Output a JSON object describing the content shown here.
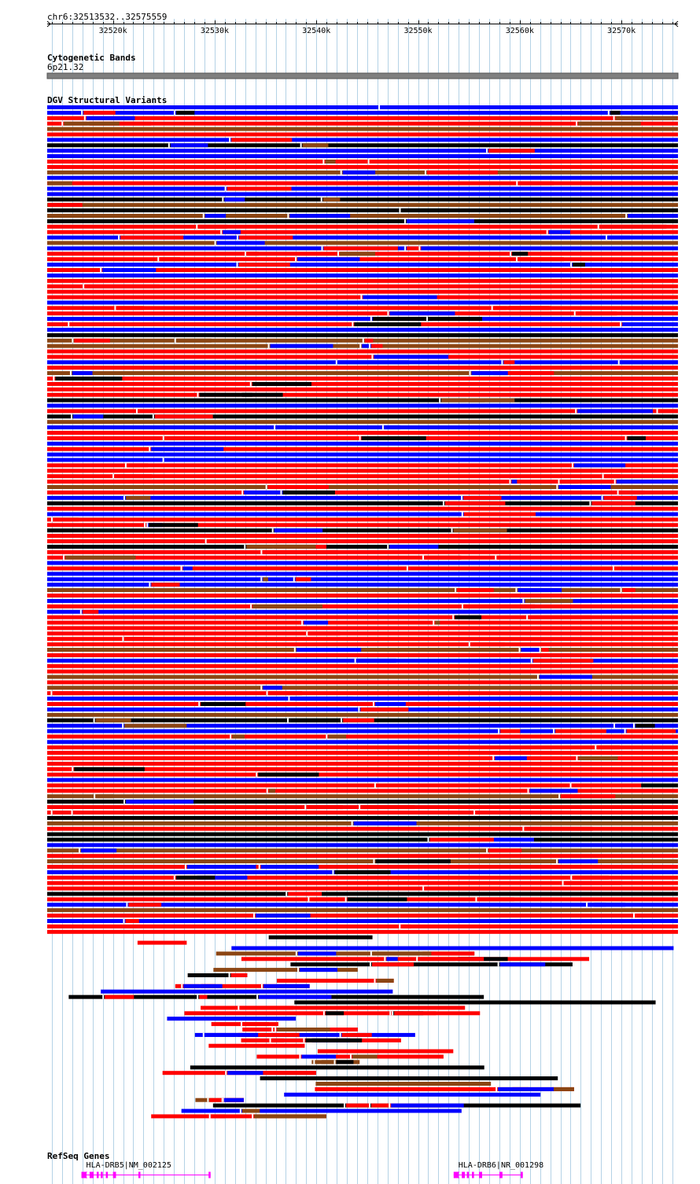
{
  "region": {
    "label": "chr6:32513532..32575559",
    "start": 32513532,
    "end": 32575559
  },
  "ruler": {
    "ticks": [
      "32520k",
      "32530k",
      "32540k",
      "32550k",
      "32560k",
      "32570k"
    ],
    "tick_values": [
      32520000,
      32530000,
      32540000,
      32550000,
      32560000,
      32570000
    ]
  },
  "tracks": {
    "cytoband": {
      "title": "Cytogenetic Bands",
      "band": "6p21.32",
      "color": "#7f7f7f"
    },
    "dgv": {
      "title": "DGV Structural Variants"
    },
    "refseq": {
      "title": "RefSeq Genes"
    }
  },
  "colors": {
    "gain": "#ff0000",
    "loss": "#0000ff",
    "inversion": "#8b4513",
    "complex": "#000000",
    "other": "#5a2a8a",
    "gene": "#ff00ff",
    "grid": "#b4d2e6"
  },
  "genes": [
    {
      "name": "HLA-DRB5|NM_002125",
      "start": 32516900,
      "end": 32529600,
      "strand": "-",
      "exons": [
        [
          32516900,
          32517400
        ],
        [
          32517700,
          32518100
        ],
        [
          32518400,
          32518600
        ],
        [
          32518800,
          32519000
        ],
        [
          32519300,
          32519500
        ],
        [
          32520000,
          32520300
        ],
        [
          32522500,
          32522700
        ],
        [
          32529400,
          32529600
        ]
      ]
    },
    {
      "name": "HLA-DRB6|NR_001298",
      "start": 32553500,
      "end": 32560300,
      "strand": "-",
      "exons": [
        [
          32553500,
          32554000
        ],
        [
          32554300,
          32554600
        ],
        [
          32554800,
          32555000
        ],
        [
          32555300,
          32555500
        ],
        [
          32556000,
          32556300
        ],
        [
          32558000,
          32558300
        ],
        [
          32560100,
          32560300
        ]
      ]
    }
  ]
}
